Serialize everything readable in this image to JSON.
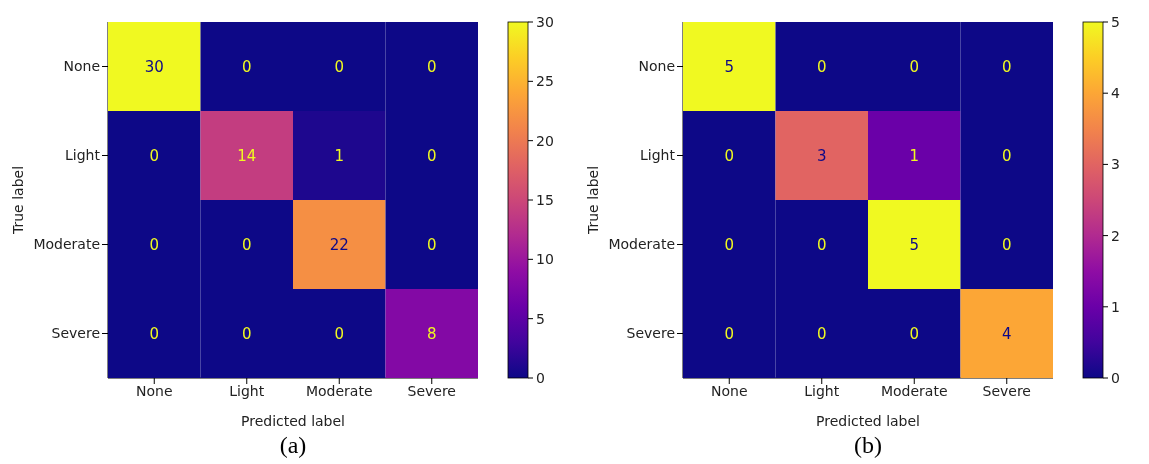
{
  "chart_data": [
    {
      "type": "heatmap",
      "xlabel": "Predicted label",
      "ylabel": "True label",
      "categories": [
        "None",
        "Light",
        "Moderate",
        "Severe"
      ],
      "y_categories": [
        "None",
        "Light",
        "Moderate",
        "Severe"
      ],
      "cells": [
        [
          30,
          0,
          0,
          0
        ],
        [
          0,
          14,
          1,
          0
        ],
        [
          0,
          0,
          22,
          0
        ],
        [
          0,
          0,
          0,
          8
        ]
      ],
      "clim": [
        0,
        30
      ],
      "cticks": [
        0,
        5,
        10,
        15,
        20,
        25,
        30
      ],
      "data_labels": true,
      "annotations": [
        "(a)"
      ]
    },
    {
      "type": "heatmap",
      "xlabel": "Predicted label",
      "ylabel": "True label",
      "categories": [
        "None",
        "Light",
        "Moderate",
        "Severe"
      ],
      "y_categories": [
        "None",
        "Light",
        "Moderate",
        "Severe"
      ],
      "cells": [
        [
          5,
          0,
          0,
          0
        ],
        [
          0,
          3,
          1,
          0
        ],
        [
          0,
          0,
          5,
          0
        ],
        [
          0,
          0,
          0,
          4
        ]
      ],
      "clim": [
        0,
        5
      ],
      "cticks": [
        0,
        1,
        2,
        3,
        4,
        5
      ],
      "data_labels": true,
      "annotations": [
        "(b)"
      ]
    }
  ]
}
